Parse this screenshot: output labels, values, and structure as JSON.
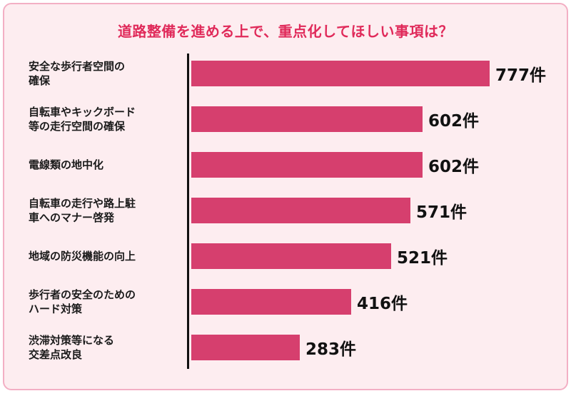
{
  "title": "道路整備を進める上で、重点化してほしい事項は？",
  "unit_suffix": "件",
  "colors": {
    "bar": "#d63f6e",
    "title": "#e02a5a",
    "card_background": "#fdedf0",
    "card_border": "#f3afc4",
    "axis": "#111111",
    "value_text": "#111111",
    "label_text": "#1a1a1a"
  },
  "chart_data": {
    "type": "bar",
    "orientation": "horizontal",
    "title": "道路整備を進める上で、重点化してほしい事項は？",
    "categories": [
      "安全な歩行者空間の確保",
      "自転車やキックボード等の走行空間の確保",
      "電線類の地中化",
      "自転車の走行や路上駐車へのマナー啓発",
      "地域の防災機能の向上",
      "歩行者の安全のためのハード対策",
      "渋滞対策等になる交差点改良"
    ],
    "category_display_lines": [
      "安全な歩行者空間の\n確保",
      "自転車やキックボード\n等の走行空間の確保",
      "電線類の地中化",
      "自転車の走行や路上駐\n車へのマナー啓発",
      "地域の防災機能の向上",
      "歩行者の安全のための\nハード対策",
      "渋滞対策等になる\n交差点改良"
    ],
    "values": [
      777,
      602,
      602,
      571,
      521,
      416,
      283
    ],
    "value_labels": [
      "777件",
      "602件",
      "602件",
      "571件",
      "521件",
      "416件",
      "283件"
    ],
    "xlabel": "",
    "ylabel": "",
    "xlim": [
      0,
      777
    ],
    "grid": false,
    "legend": false
  }
}
